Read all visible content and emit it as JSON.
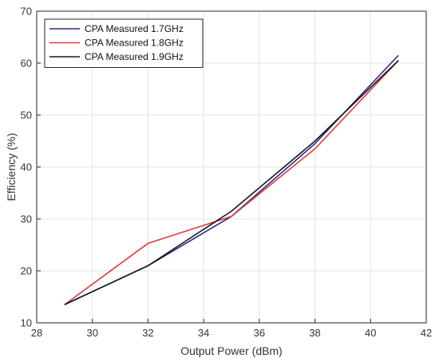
{
  "chart_data": {
    "type": "line",
    "xlabel": "Output Power (dBm)",
    "ylabel": "Efficiency (%)",
    "xlim": [
      28,
      42
    ],
    "ylim": [
      10,
      70
    ],
    "xticks": [
      28,
      30,
      32,
      34,
      36,
      38,
      40,
      42
    ],
    "yticks": [
      10,
      20,
      30,
      40,
      50,
      60,
      70
    ],
    "grid": true,
    "legend_position": "top-left",
    "series": [
      {
        "name": "CPA Measured 1.7GHz",
        "color": "#2b2b8c",
        "x": [
          29,
          32,
          35,
          38,
          41
        ],
        "y": [
          13.5,
          21,
          30.5,
          44.5,
          61.5
        ]
      },
      {
        "name": "CPA Measured 1.8GHz",
        "color": "#e0393e",
        "x": [
          29,
          32,
          35,
          38,
          41
        ],
        "y": [
          13.5,
          25.3,
          30.5,
          43.5,
          60.5
        ]
      },
      {
        "name": "CPA Measured 1.9GHz",
        "color": "#1a1a1a",
        "x": [
          29,
          32,
          35,
          38,
          41
        ],
        "y": [
          13.5,
          21,
          31.5,
          45,
          60.5
        ]
      }
    ]
  }
}
